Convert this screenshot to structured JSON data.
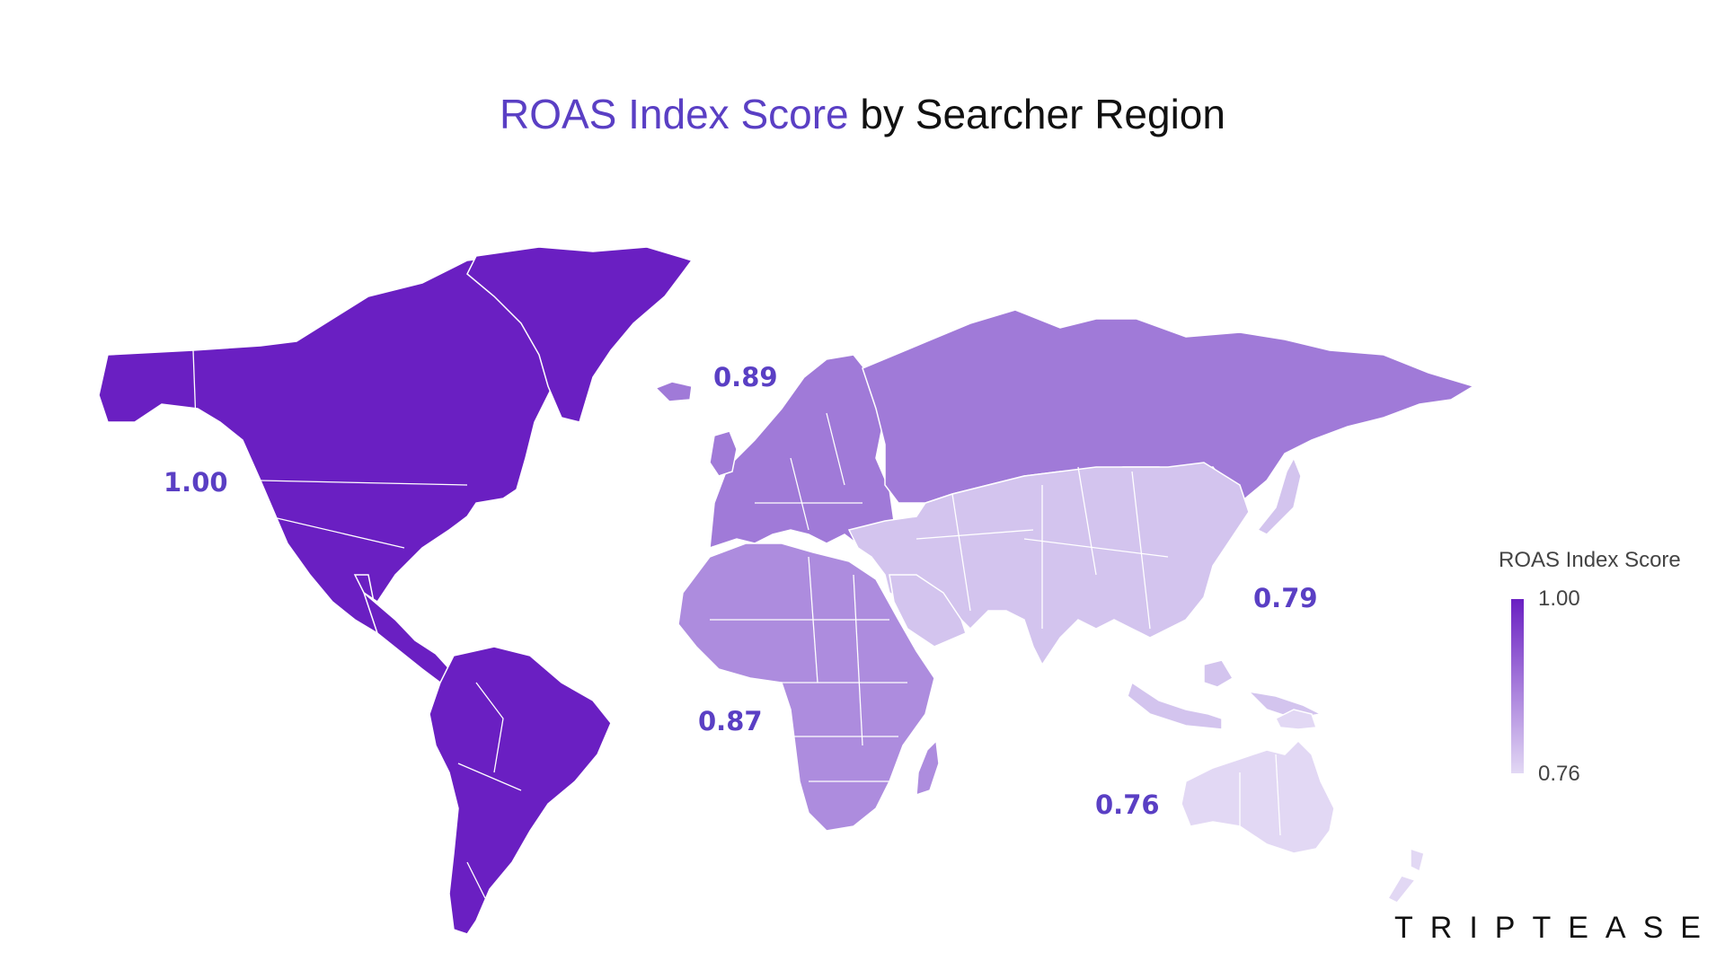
{
  "title": {
    "accent": "ROAS Index Score",
    "rest": " by Searcher Region"
  },
  "legend": {
    "title": "ROAS Index Score",
    "max_label": "1.00",
    "min_label": "0.76"
  },
  "colors": {
    "americas": "#6a1fc2",
    "europe": "#a07ad8",
    "russia": "#a07ad8",
    "africa": "#ad8cde",
    "asia": "#d3c4ee",
    "oceania": "#e2d8f4",
    "accent": "#5a3fc4",
    "borders": "#ffffff"
  },
  "regions": [
    {
      "id": "americas",
      "score": "1.00"
    },
    {
      "id": "europe",
      "score": "0.89"
    },
    {
      "id": "africa",
      "score": "0.87"
    },
    {
      "id": "asia",
      "score": "0.79"
    },
    {
      "id": "oceania",
      "score": "0.76"
    }
  ],
  "brand": "TRIPTEASE"
}
